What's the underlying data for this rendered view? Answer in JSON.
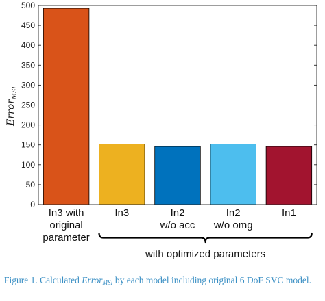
{
  "chart_data": {
    "type": "bar",
    "categories": [
      [
        "In3 with",
        "original",
        "parameter"
      ],
      [
        "In3"
      ],
      [
        "In2",
        "w/o acc"
      ],
      [
        "In2",
        "w/o omg"
      ],
      [
        "In1"
      ]
    ],
    "values": [
      493,
      152,
      146,
      152,
      146
    ],
    "colors": [
      "#d95319",
      "#edb120",
      "#0072bd",
      "#4dbeee",
      "#a2142f"
    ],
    "ylabel": "Error",
    "ylabel_subscript": "MSI",
    "ylim": [
      0,
      500
    ],
    "yticks": [
      0,
      50,
      100,
      150,
      200,
      250,
      300,
      350,
      400,
      450,
      500
    ],
    "grid": false,
    "group_bracket": {
      "label": "with optimized parameters",
      "from_index": 1,
      "to_index": 4
    }
  },
  "caption": {
    "prefix": "Figure 1. Calculated ",
    "var": "Error",
    "var_sub": "MSI",
    "suffix": " by each model including original 6 DoF SVC model."
  }
}
